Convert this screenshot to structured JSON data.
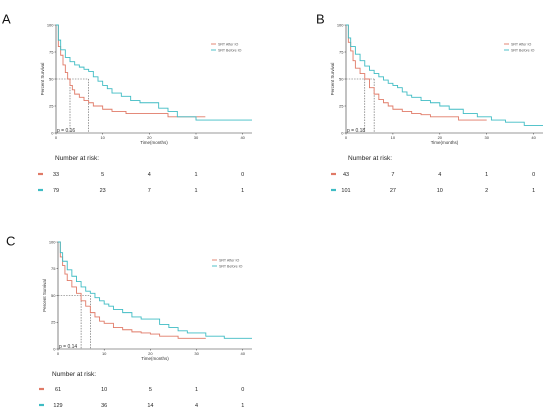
{
  "colors": {
    "after": "#e07a67",
    "before": "#3fbcc4",
    "axis": "#333333",
    "median": "#555555"
  },
  "chart_data": [
    {
      "type": "line",
      "panel_label": "A",
      "title": "",
      "xlabel": "Time(months)",
      "ylabel": "Percent Survival",
      "xlim": [
        0,
        42
      ],
      "ylim": [
        0,
        100
      ],
      "x_ticks": [
        0,
        10,
        20,
        30,
        40
      ],
      "y_ticks": [
        0,
        25,
        50,
        75,
        100
      ],
      "pvalue": "p = 0.16",
      "median_lines": [
        3,
        7
      ],
      "legend": {
        "placement": "top-right"
      },
      "series": [
        {
          "name": "SRT After IO",
          "color": "#e07a67",
          "x": [
            0,
            0.5,
            1,
            1.5,
            2,
            2.5,
            3,
            3.5,
            4,
            5,
            6,
            7,
            8,
            10,
            12,
            15,
            20,
            24,
            28,
            32
          ],
          "y": [
            100,
            80,
            72,
            63,
            56,
            50,
            44,
            40,
            36,
            33,
            30,
            28,
            25,
            22,
            20,
            18,
            18,
            15,
            15,
            15
          ]
        },
        {
          "name": "SRT Before IO",
          "color": "#3fbcc4",
          "x": [
            0,
            0.5,
            1,
            2,
            3,
            4,
            5,
            6,
            7,
            8,
            9,
            10,
            11,
            12,
            14,
            16,
            18,
            20,
            22,
            24,
            26,
            28,
            30,
            42
          ],
          "y": [
            100,
            86,
            77,
            70,
            66,
            63,
            61,
            59,
            57,
            52,
            48,
            44,
            41,
            37,
            34,
            30,
            28,
            28,
            23,
            20,
            15,
            15,
            12,
            12
          ]
        }
      ],
      "risk_table": {
        "title": "Number at risk:",
        "time_points": [
          0,
          10,
          20,
          30,
          40
        ],
        "rows": [
          {
            "name": "SRT After IO",
            "values": [
              33,
              5,
              4,
              1,
              0
            ]
          },
          {
            "name": "SRT Before IO",
            "values": [
              79,
              23,
              7,
              1,
              1
            ]
          }
        ]
      }
    },
    {
      "type": "line",
      "panel_label": "B",
      "title": "",
      "xlabel": "Time(months)",
      "ylabel": "Percent Survival",
      "xlim": [
        0,
        42
      ],
      "ylim": [
        0,
        100
      ],
      "x_ticks": [
        0,
        10,
        20,
        30,
        40
      ],
      "y_ticks": [
        0,
        25,
        50,
        75,
        100
      ],
      "pvalue": "p = 0.18",
      "median_lines": [
        4,
        6
      ],
      "legend": {
        "placement": "top-right"
      },
      "series": [
        {
          "name": "SRT After IO",
          "color": "#e07a67",
          "x": [
            0,
            0.5,
            1,
            1.5,
            2,
            3,
            4,
            5,
            6,
            7,
            8,
            9,
            10,
            12,
            14,
            16,
            18,
            20,
            24,
            28,
            30
          ],
          "y": [
            100,
            84,
            76,
            67,
            60,
            55,
            50,
            42,
            36,
            31,
            28,
            25,
            22,
            20,
            18,
            17,
            15,
            15,
            12,
            12,
            12
          ]
        },
        {
          "name": "SRT Before IO",
          "color": "#3fbcc4",
          "x": [
            0,
            0.5,
            1,
            2,
            3,
            4,
            5,
            6,
            7,
            8,
            9,
            10,
            11,
            12,
            13,
            14,
            16,
            18,
            20,
            22,
            25,
            28,
            31,
            34,
            38,
            42
          ],
          "y": [
            100,
            88,
            80,
            73,
            67,
            62,
            58,
            55,
            52,
            49,
            46,
            44,
            42,
            38,
            35,
            33,
            30,
            28,
            25,
            22,
            18,
            15,
            12,
            10,
            7,
            7
          ]
        }
      ],
      "risk_table": {
        "title": "Number at risk:",
        "time_points": [
          0,
          10,
          20,
          30,
          40
        ],
        "rows": [
          {
            "name": "SRT After IO",
            "values": [
              43,
              7,
              4,
              1,
              0
            ]
          },
          {
            "name": "SRT Before IO",
            "values": [
              101,
              27,
              10,
              2,
              1
            ]
          }
        ]
      }
    },
    {
      "type": "line",
      "panel_label": "C",
      "title": "",
      "xlabel": "Time(months)",
      "ylabel": "Percent Survival",
      "xlim": [
        0,
        42
      ],
      "ylim": [
        0,
        100
      ],
      "x_ticks": [
        0,
        10,
        20,
        30,
        40
      ],
      "y_ticks": [
        0,
        25,
        50,
        75,
        100
      ],
      "pvalue": "p = 0.14",
      "median_lines": [
        5,
        7
      ],
      "legend": {
        "placement": "top-right"
      },
      "series": [
        {
          "name": "SRT After IO",
          "color": "#e07a67",
          "x": [
            0,
            0.5,
            1,
            1.5,
            2,
            3,
            4,
            5,
            6,
            7,
            8,
            9,
            10,
            12,
            14,
            16,
            18,
            20,
            22,
            26,
            32
          ],
          "y": [
            100,
            86,
            78,
            70,
            64,
            58,
            52,
            45,
            40,
            34,
            30,
            26,
            24,
            20,
            18,
            16,
            15,
            14,
            12,
            10,
            10
          ]
        },
        {
          "name": "SRT Before IO",
          "color": "#3fbcc4",
          "x": [
            0,
            0.5,
            1,
            2,
            3,
            4,
            5,
            6,
            7,
            8,
            9,
            10,
            11,
            12,
            14,
            16,
            18,
            20,
            22,
            24,
            26,
            28,
            32,
            36,
            42
          ],
          "y": [
            100,
            90,
            82,
            74,
            68,
            63,
            58,
            54,
            52,
            48,
            45,
            42,
            40,
            37,
            34,
            30,
            28,
            28,
            23,
            20,
            17,
            15,
            12,
            10,
            10
          ]
        }
      ],
      "risk_table": {
        "title": "Number at risk:",
        "time_points": [
          0,
          10,
          20,
          30,
          40
        ],
        "rows": [
          {
            "name": "SRT After IO",
            "values": [
              61,
              10,
              5,
              1,
              0
            ]
          },
          {
            "name": "SRT Before IO",
            "values": [
              129,
              36,
              14,
              4,
              1
            ]
          }
        ]
      }
    }
  ]
}
